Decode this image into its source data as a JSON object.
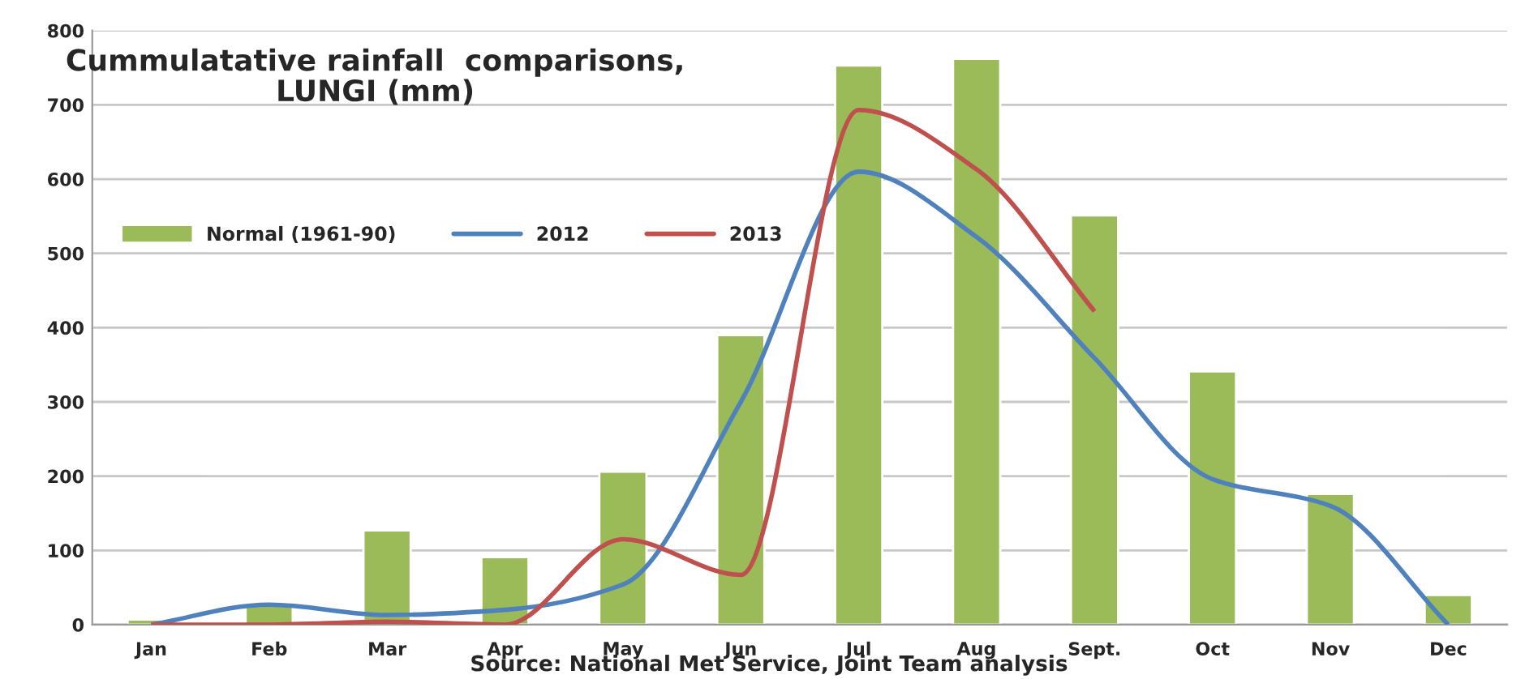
{
  "chart_data": {
    "type": "line",
    "title": "Cummulatative rainfall  comparisons,\nLUNGI (mm)",
    "categories": [
      "Jan",
      "Feb",
      "Mar",
      "Apr",
      "May",
      "Jun",
      "Jul",
      "Aug",
      "Sept.",
      "Oct",
      "Nov",
      "Dec"
    ],
    "series": [
      {
        "name": "Normal (1961-90)",
        "type": "bar",
        "color": "#9bbb59",
        "values": [
          7,
          27,
          127,
          91,
          206,
          390,
          753,
          762,
          551,
          341,
          176,
          40
        ]
      },
      {
        "name": "2012",
        "color": "#4f81bd",
        "values": [
          0,
          27,
          13,
          20,
          54,
          300,
          610,
          522,
          359,
          196,
          160,
          0
        ]
      },
      {
        "name": "2013",
        "color": "#c0504d",
        "values": [
          0,
          0,
          4,
          0,
          115,
          67,
          693,
          613,
          422,
          null,
          null,
          null
        ]
      }
    ],
    "ylim": [
      0,
      800
    ],
    "yticks": [
      0,
      100,
      200,
      300,
      400,
      500,
      600,
      700,
      800
    ],
    "grid": "y",
    "legend": "top left",
    "marker": "none",
    "line_style": "solid",
    "annotations": [
      "Source: National Met Service, Joint Team analysis"
    ]
  }
}
